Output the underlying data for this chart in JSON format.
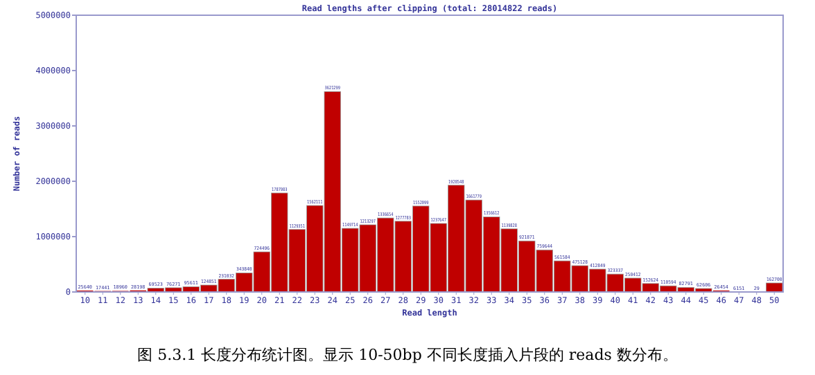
{
  "chart_data": {
    "type": "bar",
    "title": "Read lengths after clipping (total: 28014822 reads)",
    "xlabel": "Read length",
    "ylabel": "Number of reads",
    "categories": [
      "10",
      "11",
      "12",
      "13",
      "14",
      "15",
      "16",
      "17",
      "18",
      "19",
      "20",
      "21",
      "22",
      "23",
      "24",
      "25",
      "26",
      "27",
      "28",
      "29",
      "30",
      "31",
      "32",
      "33",
      "34",
      "35",
      "36",
      "37",
      "38",
      "39",
      "40",
      "41",
      "42",
      "43",
      "44",
      "45",
      "46",
      "47",
      "48",
      "50"
    ],
    "values": [
      25640,
      17441,
      18960,
      28198,
      69523,
      76271,
      95611,
      124851,
      231032,
      343840,
      724496,
      1787983,
      1129351,
      1562111,
      3621299,
      1149714,
      1213297,
      1336654,
      1277783,
      1552099,
      1237647,
      1928548,
      1661779,
      1356612,
      1139828,
      921871,
      759644,
      561584,
      475128,
      412849,
      323337,
      250412,
      152624,
      110594,
      82791,
      62606,
      26454,
      6151,
      29,
      162700
    ],
    "color": "#c00000",
    "ylim": [
      0,
      5000000
    ],
    "yticks": [
      0,
      1000000,
      2000000,
      3000000,
      4000000,
      5000000
    ],
    "data_labels": true,
    "annotations": [
      "图 5.3.1 长度分布统计图。显示 10-50bp 不同长度插入片段的 reads 数分布。"
    ]
  }
}
